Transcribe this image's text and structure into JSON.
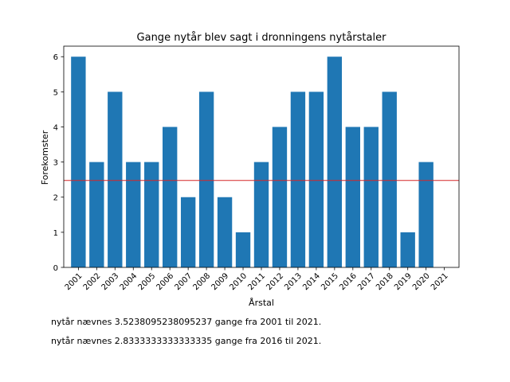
{
  "chart_data": {
    "type": "bar",
    "title": "Gange nytår blev sagt i dronningens nytårstaler",
    "xlabel": "Årstal",
    "ylabel": "Forekomster",
    "categories": [
      "2001",
      "2002",
      "2003",
      "2004",
      "2005",
      "2006",
      "2007",
      "2008",
      "2009",
      "2010",
      "2011",
      "2012",
      "2013",
      "2014",
      "2015",
      "2016",
      "2017",
      "2018",
      "2019",
      "2020",
      "2021"
    ],
    "values": [
      6,
      3,
      5,
      3,
      3,
      4,
      2,
      5,
      2,
      1,
      3,
      4,
      5,
      5,
      6,
      4,
      4,
      5,
      1,
      3,
      0
    ],
    "ylim": [
      0,
      6.3
    ],
    "yticks": [
      0,
      1,
      2,
      3,
      4,
      5,
      6
    ],
    "reference_line": {
      "value": 2.476,
      "color": "#d62728"
    },
    "bar_color": "#1f77b4",
    "grid": false
  },
  "notes": [
    "nytår nævnes 3.5238095238095237 gange fra 2001 til 2021.",
    "nytår nævnes 2.8333333333333335 gange fra 2016 til 2021."
  ]
}
